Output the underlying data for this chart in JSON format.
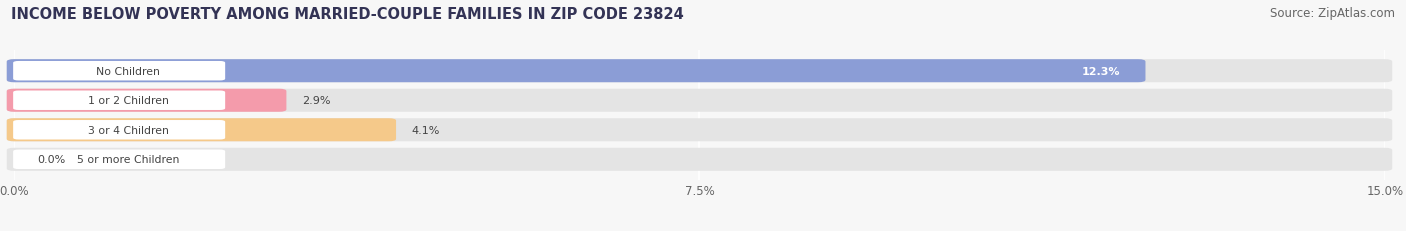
{
  "title": "INCOME BELOW POVERTY AMONG MARRIED-COUPLE FAMILIES IN ZIP CODE 23824",
  "source": "Source: ZipAtlas.com",
  "categories": [
    "No Children",
    "1 or 2 Children",
    "3 or 4 Children",
    "5 or more Children"
  ],
  "values": [
    12.3,
    2.9,
    4.1,
    0.0
  ],
  "bar_colors": [
    "#8b9dd6",
    "#f49bab",
    "#f5c98a",
    "#f49bab"
  ],
  "xlim": [
    0,
    15.0
  ],
  "xticks": [
    0.0,
    7.5,
    15.0
  ],
  "xticklabels": [
    "0.0%",
    "7.5%",
    "15.0%"
  ],
  "title_fontsize": 10.5,
  "source_fontsize": 8.5,
  "background_color": "#f7f7f7",
  "bar_bg_color": "#e4e4e4",
  "label_bg_color": "#ffffff"
}
